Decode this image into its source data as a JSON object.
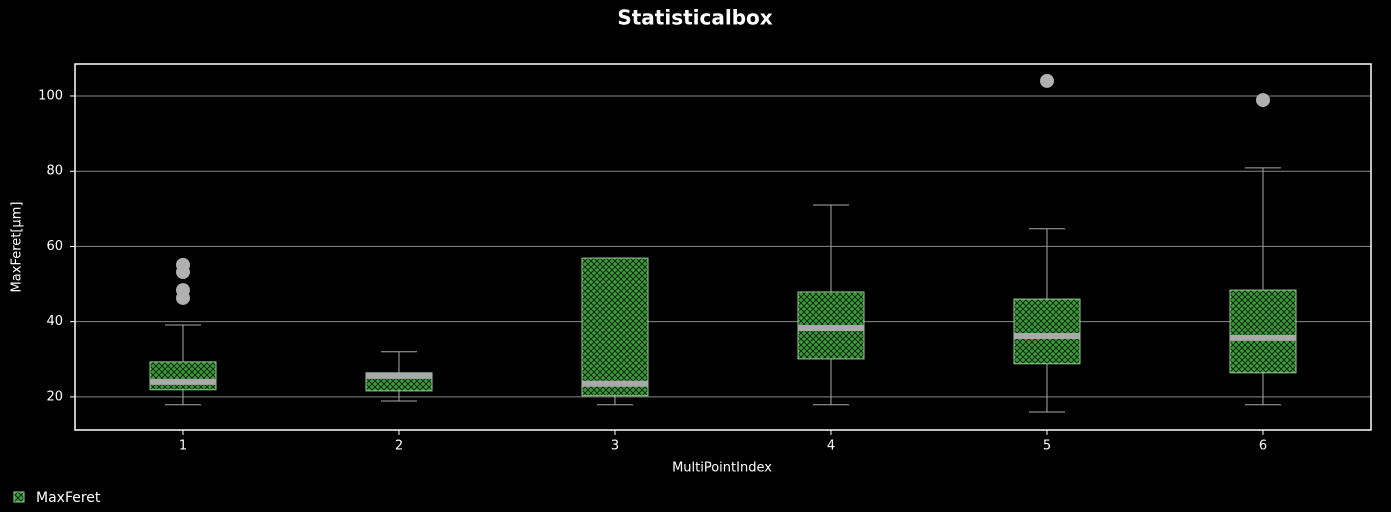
{
  "chart_data": {
    "type": "boxplot",
    "title": "Statisticalbox",
    "x_label": "MultiPointIndex",
    "y_label": "MaxFeret[µm]",
    "categories": [
      "1",
      "2",
      "3",
      "4",
      "5",
      "6"
    ],
    "series": [
      {
        "name": "MaxFeret",
        "color": "#3c9a3c",
        "low": [
          17.9,
          18.9,
          17.9,
          17.9,
          16.0,
          17.9
        ],
        "q1": [
          21.9,
          21.6,
          20.3,
          30.1,
          28.8,
          26.4
        ],
        "median": [
          24.0,
          25.6,
          23.5,
          38.3,
          36.2,
          35.7
        ],
        "q3": [
          29.3,
          26.4,
          56.9,
          47.9,
          46.0,
          48.4
        ],
        "high": [
          39.1,
          32.0,
          56.9,
          71.0,
          64.7,
          80.9
        ],
        "outliers": [
          [
            55.1,
            53.2,
            48.4,
            46.3
          ],
          [],
          [],
          [],
          [
            104.0
          ],
          [
            98.9
          ]
        ]
      }
    ],
    "ylim": [
      11.2,
      108.5
    ],
    "yticks": [
      20,
      40,
      60,
      80,
      100
    ],
    "grid": true,
    "legend": "bottom-left"
  }
}
